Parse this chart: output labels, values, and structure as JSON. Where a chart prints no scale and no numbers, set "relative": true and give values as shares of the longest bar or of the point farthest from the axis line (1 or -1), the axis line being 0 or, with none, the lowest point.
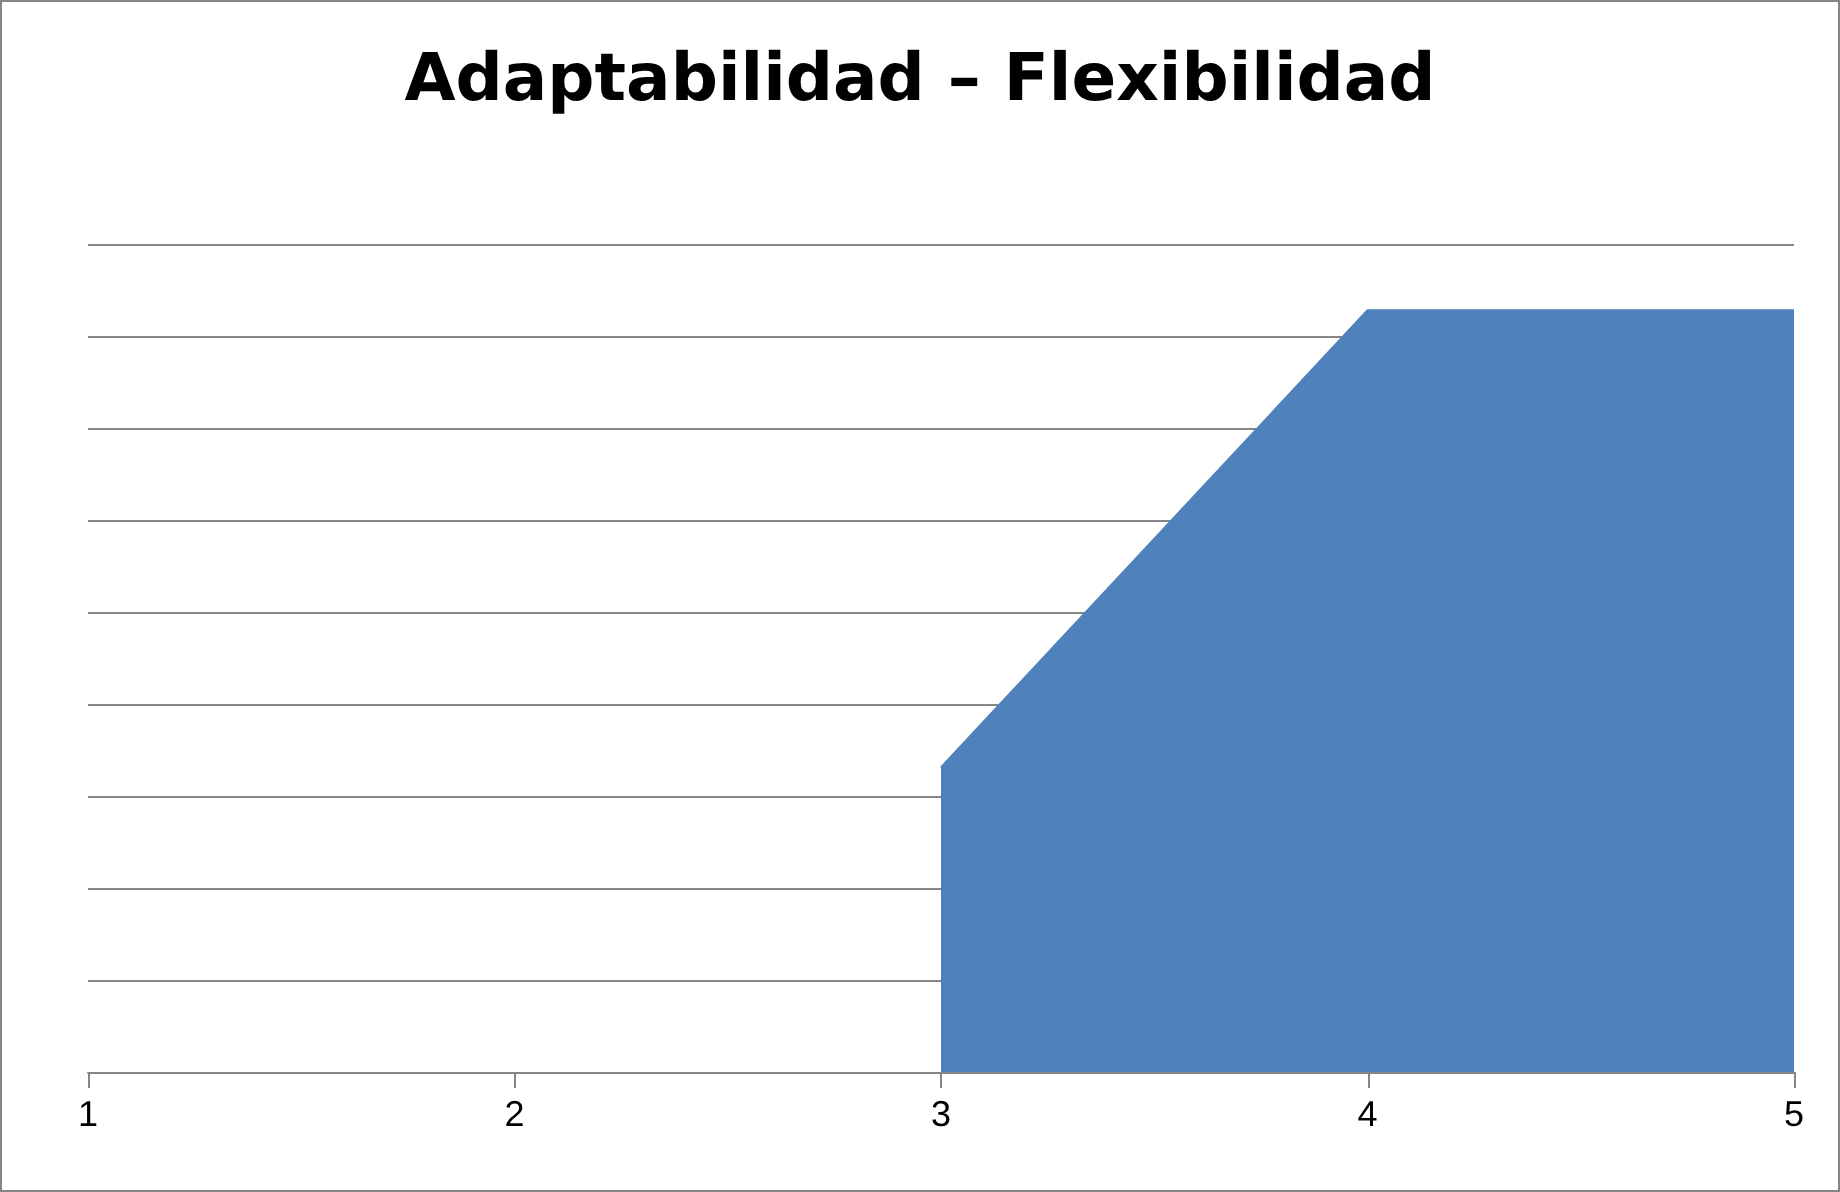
{
  "chart_data": {
    "type": "area",
    "title": "Adaptabilidad – Flexibilidad",
    "x": [
      3,
      4,
      5
    ],
    "values": [
      0.4,
      1,
      1
    ],
    "color": "#4f81bd",
    "relative": true,
    "xlim": [
      1,
      5
    ],
    "xticks": [
      1,
      2,
      3,
      4,
      5
    ],
    "grid": "y"
  }
}
